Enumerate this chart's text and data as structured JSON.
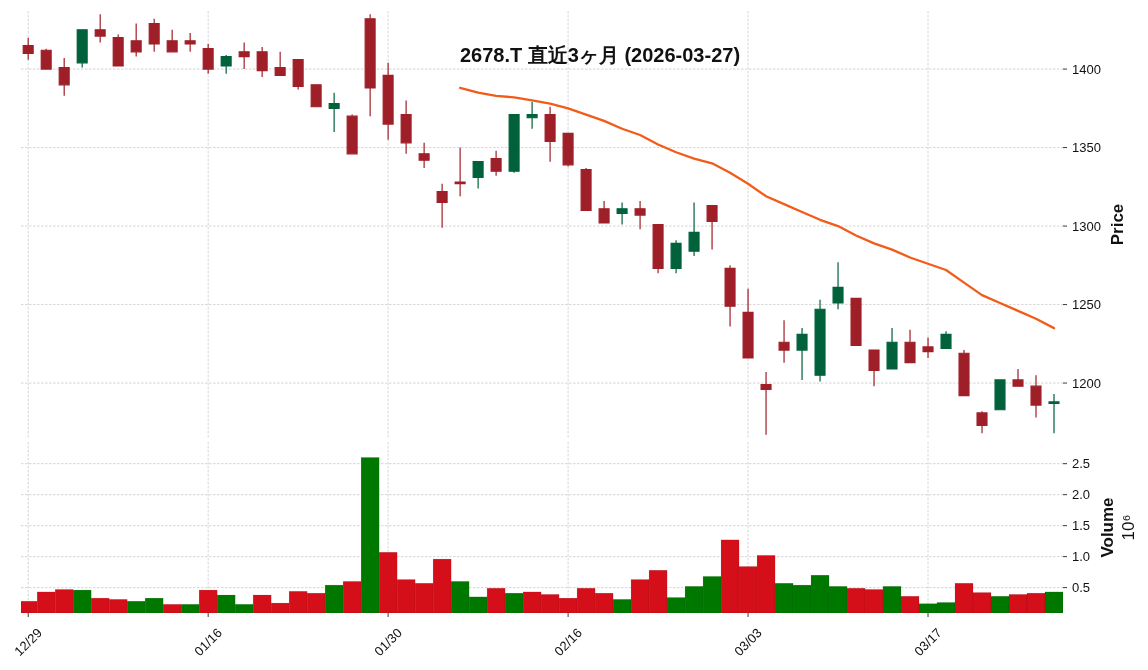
{
  "chart_data": [
    {
      "type": "candlestick",
      "title": "2678.T 直近3ヶ月 (2026-03-27)",
      "ylabel": "Price",
      "categories": [
        null,
        null,
        null,
        null,
        null,
        null,
        null,
        null,
        null,
        null,
        null,
        null,
        null,
        null,
        null,
        null,
        null,
        null,
        null,
        null,
        null,
        null,
        null,
        null,
        null,
        null,
        null,
        null,
        null,
        null,
        null,
        null,
        null,
        null,
        null,
        null,
        null,
        null,
        null,
        null,
        null,
        null,
        null,
        null,
        null,
        null,
        null,
        null,
        null,
        null,
        null,
        null,
        null,
        null,
        null,
        null,
        null,
        null
      ],
      "ohlc": [
        [
          1415,
          1420,
          1406,
          1410
        ],
        [
          1412,
          1413,
          1400,
          1400
        ],
        [
          1401,
          1407,
          1383,
          1390
        ],
        [
          1404,
          1425,
          1401,
          1425
        ],
        [
          1425,
          1435,
          1417,
          1421
        ],
        [
          1420,
          1422,
          1402,
          1402
        ],
        [
          1418,
          1429,
          1408,
          1411
        ],
        [
          1429,
          1432,
          1411,
          1416
        ],
        [
          1418,
          1425,
          1411,
          1411
        ],
        [
          1418,
          1423,
          1411,
          1416
        ],
        [
          1413,
          1416,
          1397,
          1400
        ],
        [
          1402,
          1409,
          1397,
          1408
        ],
        [
          1411,
          1417,
          1400,
          1408
        ],
        [
          1411,
          1414,
          1395,
          1399
        ],
        [
          1401,
          1411,
          1396,
          1396
        ],
        [
          1406,
          1406,
          1387,
          1389
        ],
        [
          1390,
          1390,
          1376,
          1376
        ],
        [
          1375,
          1385,
          1360,
          1378
        ],
        [
          1370,
          1371,
          1346,
          1346
        ],
        [
          1432,
          1435,
          1370,
          1388
        ],
        [
          1396,
          1404,
          1355,
          1365
        ],
        [
          1371,
          1380,
          1346,
          1353
        ],
        [
          1346,
          1353,
          1337,
          1342
        ],
        [
          1322,
          1327,
          1299,
          1315
        ],
        [
          1328,
          1350,
          1319,
          1327
        ],
        [
          1331,
          1341,
          1324,
          1341
        ],
        [
          1343,
          1348,
          1332,
          1335
        ],
        [
          1335,
          1371,
          1334,
          1371
        ],
        [
          1369,
          1379,
          1362,
          1371
        ],
        [
          1371,
          1376,
          1341,
          1354
        ],
        [
          1359,
          1359,
          1338,
          1339
        ],
        [
          1336,
          1337,
          1310,
          1310
        ],
        [
          1311,
          1316,
          1302,
          1302
        ],
        [
          1308,
          1315,
          1301,
          1311
        ],
        [
          1311,
          1316,
          1298,
          1307
        ],
        [
          1301,
          1301,
          1270,
          1273
        ],
        [
          1273,
          1291,
          1270,
          1289
        ],
        [
          1284,
          1315,
          1281,
          1296
        ],
        [
          1313,
          1313,
          1285,
          1303
        ],
        [
          1273,
          1275,
          1236,
          1249
        ],
        [
          1245,
          1260,
          1216,
          1216
        ],
        [
          1199,
          1207,
          1167,
          1196
        ],
        [
          1226,
          1240,
          1213,
          1221
        ],
        [
          1221,
          1235,
          1202,
          1231
        ],
        [
          1205,
          1253,
          1201,
          1247
        ],
        [
          1251,
          1277,
          1247,
          1261
        ],
        [
          1254,
          1254,
          1224,
          1224
        ],
        [
          1221,
          1221,
          1198,
          1208
        ],
        [
          1209,
          1235,
          1209,
          1226
        ],
        [
          1226,
          1234,
          1213,
          1213
        ],
        [
          1223,
          1229,
          1216,
          1220
        ],
        [
          1222,
          1233,
          1222,
          1231
        ],
        [
          1219,
          1221,
          1192,
          1192
        ],
        [
          1181,
          1182,
          1168,
          1173
        ],
        [
          1183,
          1202,
          1183,
          1202
        ],
        [
          1202,
          1209,
          1198,
          1198
        ],
        [
          1198,
          1205,
          1178,
          1186
        ],
        [
          1187,
          1193,
          1168,
          1188
        ]
      ],
      "colors": [
        "#9f1f28",
        "#9f1f28",
        "#9f1f28",
        "#00613b",
        "#9f1f28",
        "#9f1f28",
        "#9f1f28",
        "#9f1f28",
        "#9f1f28",
        "#9f1f28",
        "#9f1f28",
        "#00613b",
        "#9f1f28",
        "#9f1f28",
        "#9f1f28",
        "#9f1f28",
        "#9f1f28",
        "#00613b",
        "#9f1f28",
        "#9f1f28",
        "#9f1f28",
        "#9f1f28",
        "#9f1f28",
        "#9f1f28",
        "#9f1f28",
        "#00613b",
        "#9f1f28",
        "#00613b",
        "#00613b",
        "#9f1f28",
        "#9f1f28",
        "#9f1f28",
        "#9f1f28",
        "#00613b",
        "#9f1f28",
        "#9f1f28",
        "#00613b",
        "#00613b",
        "#9f1f28",
        "#9f1f28",
        "#9f1f28",
        "#9f1f28",
        "#9f1f28",
        "#00613b",
        "#00613b",
        "#00613b",
        "#9f1f28",
        "#9f1f28",
        "#00613b",
        "#9f1f28",
        "#9f1f28",
        "#00613b",
        "#9f1f28",
        "#9f1f28",
        "#00613b",
        "#9f1f28",
        "#9f1f28",
        "#00613b"
      ],
      "series": [
        {
          "type": "line",
          "color": "#f25c19",
          "values": [
            null,
            null,
            null,
            null,
            null,
            null,
            null,
            null,
            null,
            null,
            null,
            null,
            null,
            null,
            null,
            null,
            null,
            null,
            null,
            null,
            null,
            null,
            null,
            null,
            1388,
            1385,
            1383,
            1382,
            1380,
            1378,
            1375,
            1371,
            1367,
            1362,
            1358,
            1352,
            1347,
            1343,
            1340,
            1334,
            1327,
            1319,
            1314,
            1309,
            1304,
            1300,
            1294,
            1289,
            1285,
            1280,
            1276,
            1272,
            1264,
            1256,
            1251,
            1246,
            1241,
            1235
          ]
        }
      ],
      "ylim": [
        1165,
        1437
      ],
      "yticks": [
        1200,
        1250,
        1300,
        1350,
        1400
      ],
      "grid": true,
      "tick_labels": "y"
    },
    {
      "type": "bar",
      "ylabel": "Volume\n10⁶",
      "categories": [
        "12/29",
        null,
        null,
        null,
        null,
        null,
        null,
        null,
        null,
        null,
        "01/16",
        null,
        null,
        null,
        null,
        null,
        null,
        null,
        null,
        null,
        "01/30",
        null,
        null,
        null,
        null,
        null,
        null,
        null,
        null,
        null,
        "02/16",
        null,
        null,
        null,
        null,
        null,
        null,
        null,
        null,
        null,
        "03/03",
        null,
        null,
        null,
        null,
        null,
        null,
        null,
        null,
        null,
        "03/17",
        null,
        null,
        null,
        null,
        null,
        null,
        null
      ],
      "values": [
        0.28,
        0.43,
        0.47,
        0.46,
        0.33,
        0.31,
        0.28,
        0.33,
        0.23,
        0.23,
        0.46,
        0.38,
        0.23,
        0.38,
        0.25,
        0.44,
        0.41,
        0.54,
        0.6,
        2.6,
        1.07,
        0.63,
        0.57,
        0.96,
        0.6,
        0.35,
        0.49,
        0.41,
        0.43,
        0.39,
        0.33,
        0.49,
        0.41,
        0.31,
        0.63,
        0.78,
        0.34,
        0.52,
        0.68,
        1.27,
        0.84,
        1.02,
        0.57,
        0.54,
        0.7,
        0.52,
        0.49,
        0.47,
        0.52,
        0.36,
        0.24,
        0.26,
        0.57,
        0.42,
        0.36,
        0.39,
        0.41,
        0.43
      ],
      "colors": [
        "#d50f19",
        "#d50f19",
        "#d50f19",
        "#007800",
        "#d50f19",
        "#d50f19",
        "#007800",
        "#007800",
        "#d50f19",
        "#007800",
        "#d50f19",
        "#007800",
        "#007800",
        "#d50f19",
        "#d50f19",
        "#d50f19",
        "#d50f19",
        "#007800",
        "#d50f19",
        "#007800",
        "#d50f19",
        "#d50f19",
        "#d50f19",
        "#d50f19",
        "#007800",
        "#007800",
        "#d50f19",
        "#007800",
        "#d50f19",
        "#d50f19",
        "#d50f19",
        "#d50f19",
        "#d50f19",
        "#007800",
        "#d50f19",
        "#d50f19",
        "#007800",
        "#007800",
        "#007800",
        "#d50f19",
        "#d50f19",
        "#d50f19",
        "#007800",
        "#007800",
        "#007800",
        "#007800",
        "#d50f19",
        "#d50f19",
        "#007800",
        "#d50f19",
        "#007800",
        "#007800",
        "#d50f19",
        "#d50f19",
        "#007800",
        "#d50f19",
        "#d50f19",
        "#007800"
      ],
      "ylim": [
        0.09,
        2.85
      ],
      "yticks": [
        0.5,
        {
          "value": 1.0,
          "label": "1.0"
        },
        1.5,
        {
          "value": 2.0,
          "label": "2.0"
        },
        2.5
      ],
      "grid": true
    }
  ]
}
